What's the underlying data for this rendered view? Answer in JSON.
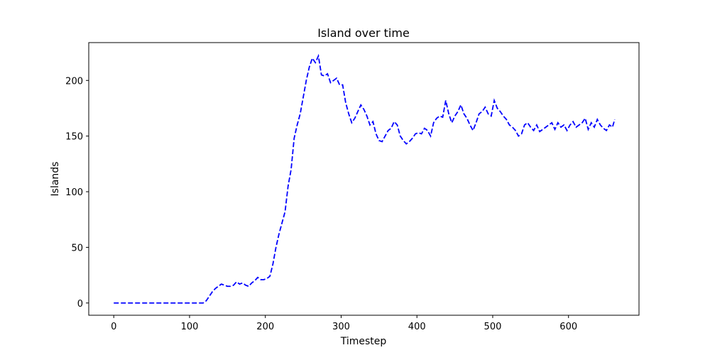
{
  "chart_data": {
    "type": "line",
    "title": "Island over time",
    "xlabel": "Timestep",
    "ylabel": "Islands",
    "xlim": [
      -33,
      693
    ],
    "ylim": [
      -11,
      234
    ],
    "xticks": [
      0,
      100,
      200,
      300,
      400,
      500,
      600
    ],
    "yticks": [
      0,
      50,
      100,
      150,
      200
    ],
    "grid": false,
    "line_color": "#0000ff",
    "line_style": "dashed",
    "series": [
      {
        "x": [
          0,
          20,
          40,
          60,
          80,
          100,
          118,
          122,
          126,
          130,
          134,
          138,
          142,
          146,
          150,
          154,
          158,
          162,
          166,
          170,
          174,
          178,
          182,
          186,
          190,
          194,
          198,
          202,
          206,
          210,
          214,
          218,
          222,
          226,
          230,
          234,
          238,
          242,
          246,
          250,
          254,
          258,
          262,
          266,
          270,
          274,
          278,
          282,
          286,
          290,
          294,
          298,
          302,
          306,
          310,
          314,
          318,
          322,
          326,
          330,
          334,
          338,
          342,
          346,
          350,
          354,
          358,
          362,
          366,
          370,
          374,
          378,
          382,
          386,
          390,
          394,
          398,
          402,
          406,
          410,
          414,
          418,
          422,
          426,
          430,
          434,
          438,
          442,
          446,
          450,
          454,
          458,
          462,
          466,
          470,
          474,
          478,
          482,
          486,
          490,
          494,
          498,
          502,
          506,
          510,
          514,
          518,
          522,
          526,
          530,
          534,
          538,
          542,
          546,
          550,
          554,
          558,
          562,
          566,
          570,
          574,
          578,
          582,
          586,
          590,
          594,
          598,
          602,
          606,
          610,
          614,
          618,
          622,
          626,
          630,
          634,
          638,
          642,
          646,
          650,
          654,
          658,
          661
        ],
        "y": [
          0,
          0,
          0,
          0,
          0,
          0,
          0,
          2,
          6,
          10,
          13,
          15,
          17,
          16,
          15,
          15,
          16,
          19,
          17,
          18,
          16,
          15,
          18,
          20,
          23,
          21,
          21,
          22,
          24,
          35,
          50,
          62,
          72,
          82,
          105,
          120,
          148,
          160,
          170,
          185,
          200,
          212,
          220,
          216,
          222,
          205,
          204,
          206,
          198,
          200,
          202,
          196,
          196,
          180,
          170,
          162,
          166,
          172,
          178,
          174,
          168,
          160,
          163,
          152,
          146,
          145,
          150,
          155,
          157,
          163,
          160,
          150,
          146,
          143,
          145,
          148,
          152,
          153,
          152,
          157,
          155,
          150,
          162,
          166,
          168,
          167,
          182,
          170,
          162,
          168,
          172,
          178,
          170,
          166,
          160,
          155,
          162,
          170,
          172,
          176,
          170,
          168,
          182,
          175,
          172,
          168,
          165,
          160,
          158,
          155,
          150,
          152,
          160,
          162,
          158,
          155,
          160,
          154,
          156,
          158,
          160,
          162,
          156,
          162,
          158,
          160,
          155,
          160,
          163,
          158,
          160,
          162,
          166,
          156,
          162,
          158,
          165,
          160,
          157,
          155,
          160,
          158,
          165
        ]
      }
    ]
  }
}
